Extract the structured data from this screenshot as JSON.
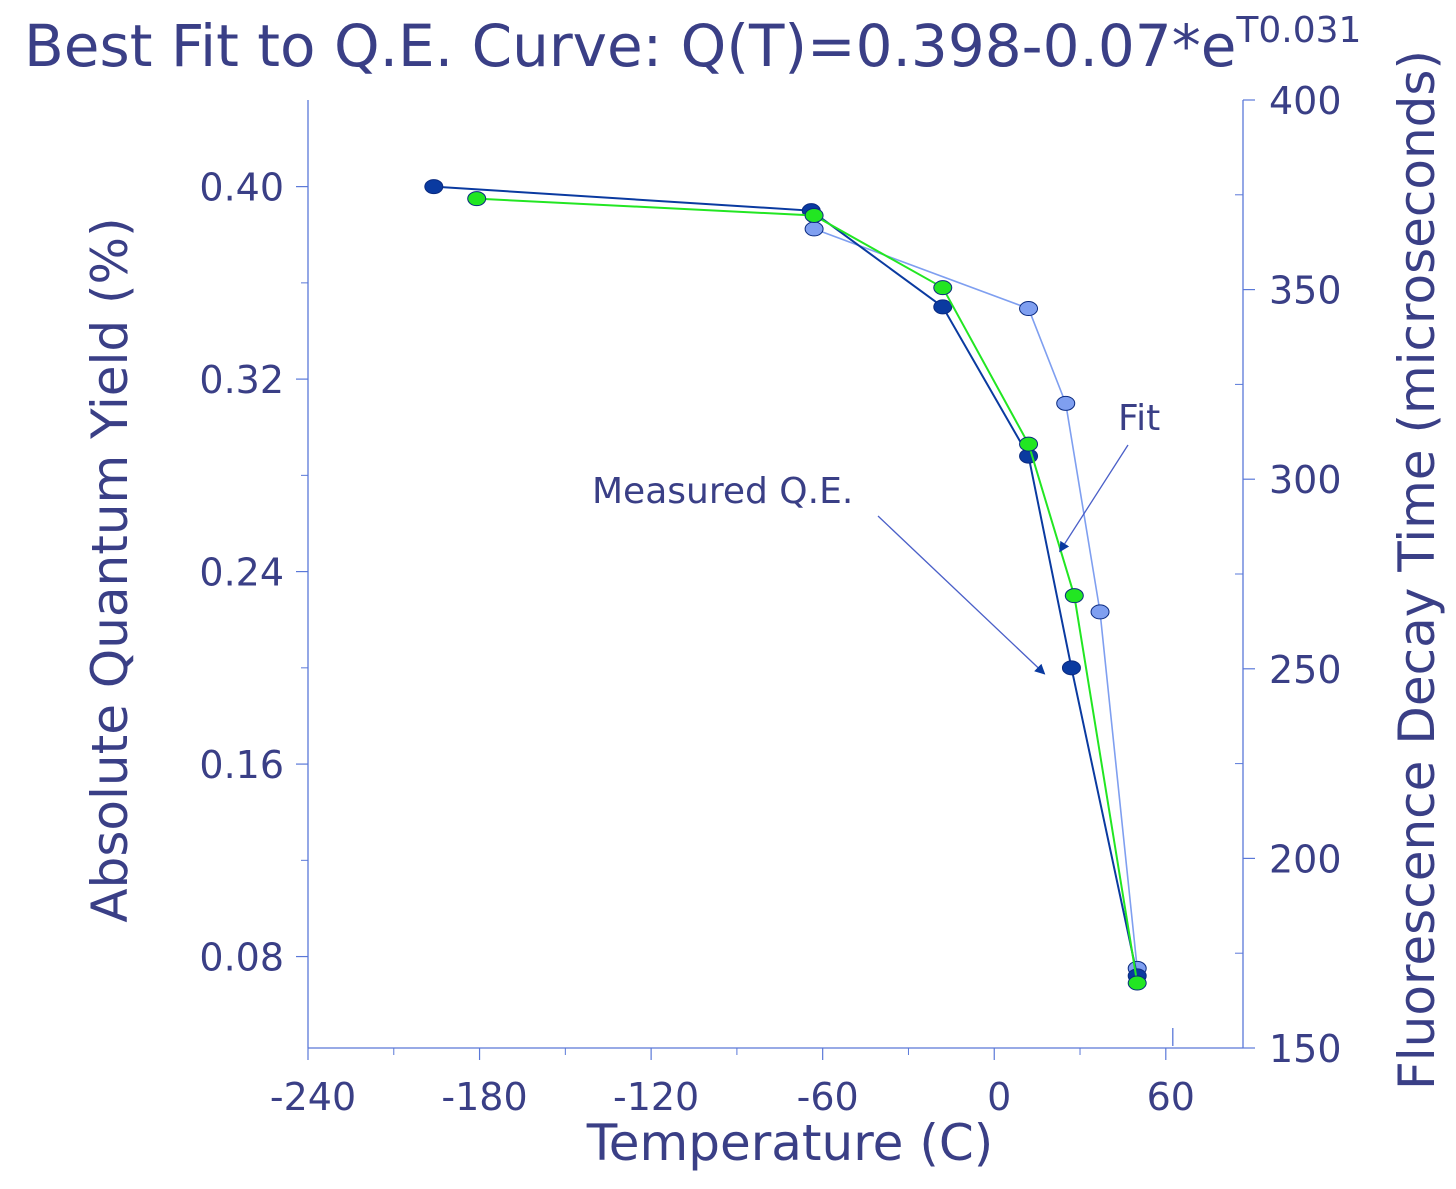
{
  "chart_data": {
    "type": "line",
    "title": {
      "main": "Best Fit to Q.E. Curve:  Q(T)=0.398-0.07*e",
      "exponent": "T0.031"
    },
    "xlabel": "Temperature (C)",
    "ylabel_left": "Absolute Quantum Yield (%)",
    "ylabel_right": "Fluorescence Decay Time (microseconds)",
    "xlim": [
      -240,
      87
    ],
    "ylim_left": [
      0.042,
      0.436
    ],
    "ylim_right": [
      150,
      400
    ],
    "x_ticks": [
      -240,
      -180,
      -120,
      -60,
      0,
      60
    ],
    "x_tick_labels": [
      "-240",
      "-180",
      "-120",
      "-60",
      "0",
      "60"
    ],
    "y_left_ticks": [
      0.08,
      0.16,
      0.24,
      0.32,
      0.4
    ],
    "y_left_tick_labels": [
      "0.08",
      "0.16",
      "0.24",
      "0.32",
      "0.40"
    ],
    "y_right_ticks": [
      150,
      200,
      250,
      300,
      350,
      400
    ],
    "y_right_tick_labels": [
      "150",
      "200",
      "250",
      "300",
      "350",
      "400"
    ],
    "series": [
      {
        "role": "measured-qe",
        "axis": "left",
        "color": "#0a3aa0",
        "x": [
          -196,
          -64,
          -18,
          12,
          27,
          50
        ],
        "y": [
          0.4,
          0.39,
          0.35,
          0.288,
          0.2,
          0.072
        ]
      },
      {
        "role": "fit",
        "axis": "left",
        "color": "#22e622",
        "x": [
          -181,
          -63,
          -18,
          12,
          28,
          50
        ],
        "y": [
          0.395,
          0.388,
          0.358,
          0.293,
          0.23,
          0.069
        ]
      },
      {
        "role": "decay-time",
        "axis": "right",
        "color": "#7f9ff0",
        "x": [
          -63,
          12,
          25,
          37,
          50
        ],
        "y": [
          366,
          345,
          320,
          265,
          171
        ]
      }
    ],
    "annotations": [
      {
        "text": "Fit",
        "target_x": 25,
        "target_y": 0.25
      },
      {
        "text": "Measured Q.E.",
        "target_x": 19,
        "target_y": 0.19
      }
    ],
    "grid": false,
    "legend": "none"
  }
}
